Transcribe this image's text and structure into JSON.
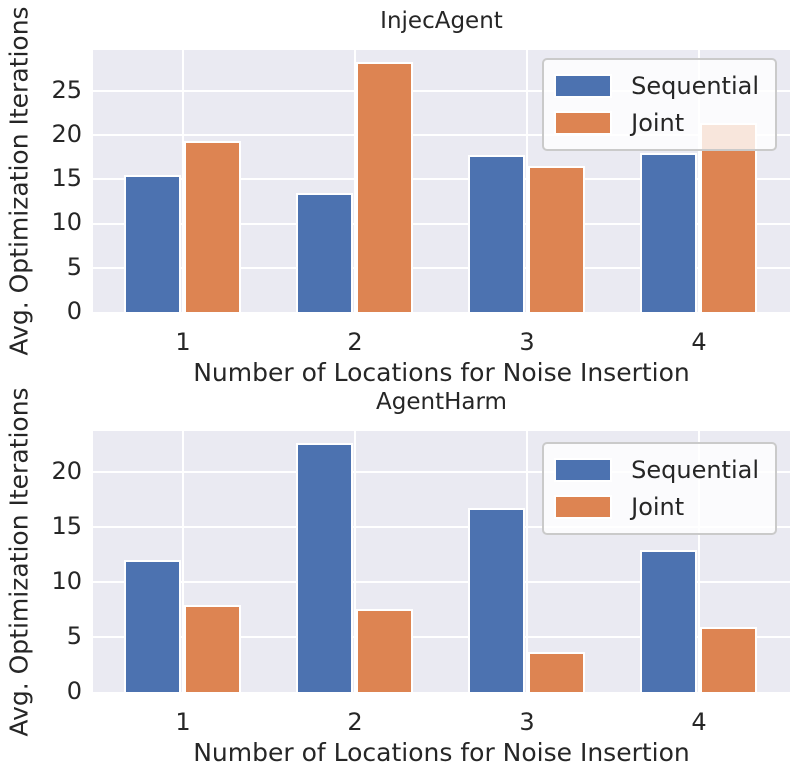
{
  "theme": {
    "background": "#eaeaf2",
    "grid_color": "#ffffff",
    "text_color": "#262626",
    "legend_background": "rgba(255,255,255,0.8)",
    "legend_border": "#cacaca",
    "sequential_color": "#4c72b0",
    "joint_color": "#dd8452"
  },
  "chart_data": [
    {
      "type": "bar",
      "title": "InjecAgent",
      "xlabel": "Number of Locations for Noise Insertion",
      "ylabel": "Avg. Optimization Iterations",
      "categories": [
        "1",
        "2",
        "3",
        "4"
      ],
      "series": [
        {
          "name": "Sequential",
          "color": "#4c72b0",
          "values": [
            15.5,
            13.5,
            17.7,
            18.0
          ]
        },
        {
          "name": "Joint",
          "color": "#dd8452",
          "values": [
            19.3,
            28.2,
            16.5,
            21.4
          ]
        }
      ],
      "ylim": [
        0,
        29.6
      ],
      "yticks": [
        0,
        5,
        10,
        15,
        20,
        25
      ],
      "grid": true,
      "legend_position": "upper right",
      "legend_labels": [
        "Sequential",
        "Joint"
      ]
    },
    {
      "type": "bar",
      "title": "AgentHarm",
      "xlabel": "Number of Locations for Noise Insertion",
      "ylabel": "Avg. Optimization Iterations",
      "categories": [
        "1",
        "2",
        "3",
        "4"
      ],
      "series": [
        {
          "name": "Sequential",
          "color": "#4c72b0",
          "values": [
            12.0,
            22.6,
            16.7,
            12.9
          ]
        },
        {
          "name": "Joint",
          "color": "#dd8452",
          "values": [
            7.9,
            7.5,
            3.6,
            5.9
          ]
        }
      ],
      "ylim": [
        0,
        23.7
      ],
      "yticks": [
        0,
        5,
        10,
        15,
        20
      ],
      "grid": true,
      "legend_position": "upper right",
      "legend_labels": [
        "Sequential",
        "Joint"
      ]
    }
  ]
}
